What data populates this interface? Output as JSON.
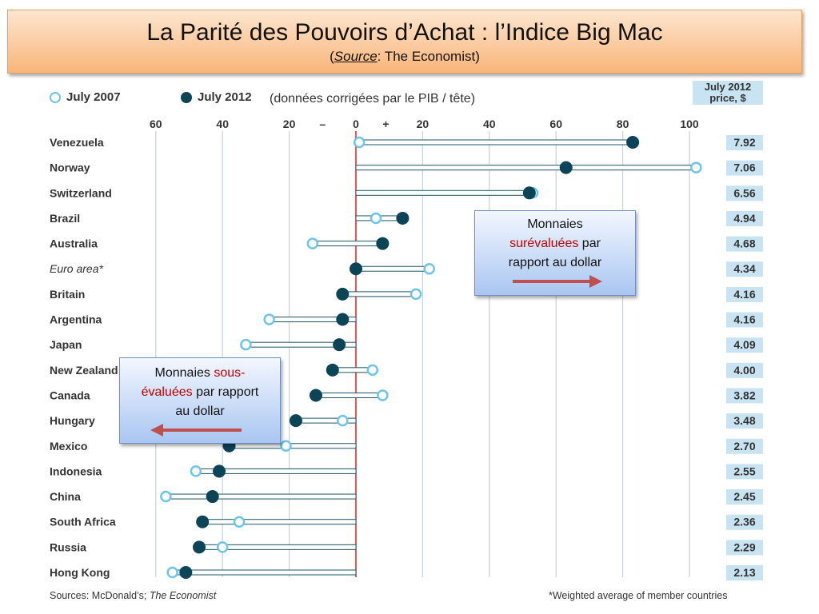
{
  "title": {
    "main": "La Parité des Pouvoirs d’Achat : l’Indice Big Mac",
    "source_open": "(",
    "source_label": "Source",
    "source_text": ": The Economist)"
  },
  "legend": {
    "open_label": "July 2007",
    "filled_label": "July 2012",
    "note": "(données corrigées par le PIB / tête)"
  },
  "price_header": {
    "line1": "July 2012",
    "line2": "price, $"
  },
  "callouts": {
    "over": {
      "line1": "Monnaies",
      "red": "surévaluées",
      "after_red": " par",
      "line3": "rapport au dollar"
    },
    "under": {
      "before_red": "Monnaies ",
      "red1": "sous-",
      "red2": "évaluées",
      "after_red": " par rapport",
      "line3": "au dollar"
    }
  },
  "footer": {
    "sources_prefix": "Sources: McDonald’s; ",
    "sources_italic": "The Economist",
    "note": "*Weighted average of member countries"
  },
  "colors": {
    "open_marker": "#6ec5ea",
    "filled_marker": "#0c4457",
    "zero_line": "#e02020",
    "price_box": "#c8e3f1",
    "arrow": "#c0504d"
  },
  "chart_data": {
    "type": "scatter",
    "xlim": [
      -60,
      100
    ],
    "x_ticks": [
      {
        "value": -60,
        "label": "60"
      },
      {
        "value": -40,
        "label": "40"
      },
      {
        "value": -20,
        "label": "20"
      },
      {
        "value": -10,
        "label": "–"
      },
      {
        "value": 0,
        "label": "0"
      },
      {
        "value": 9,
        "label": "+"
      },
      {
        "value": 20,
        "label": "20"
      },
      {
        "value": 40,
        "label": "40"
      },
      {
        "value": 60,
        "label": "60"
      },
      {
        "value": 80,
        "label": "80"
      },
      {
        "value": 100,
        "label": "100"
      }
    ],
    "grid": true,
    "legend": "top-left",
    "series": [
      {
        "name": "July 2007",
        "marker": "open"
      },
      {
        "name": "July 2012",
        "marker": "filled"
      }
    ],
    "rows": [
      {
        "country": "Venezuela",
        "italic": false,
        "v2007": 1,
        "v2012": 83,
        "price": "7.92"
      },
      {
        "country": "Norway",
        "italic": false,
        "v2007": 102,
        "v2012": 63,
        "price": "7.06"
      },
      {
        "country": "Switzerland",
        "italic": false,
        "v2007": 53,
        "v2012": 52,
        "price": "6.56"
      },
      {
        "country": "Brazil",
        "italic": false,
        "v2007": 6,
        "v2012": 14,
        "price": "4.94"
      },
      {
        "country": "Australia",
        "italic": false,
        "v2007": -13,
        "v2012": 8,
        "price": "4.68"
      },
      {
        "country": "Euro area*",
        "italic": true,
        "v2007": 22,
        "v2012": 0,
        "price": "4.34"
      },
      {
        "country": "Britain",
        "italic": false,
        "v2007": 18,
        "v2012": -4,
        "price": "4.16"
      },
      {
        "country": "Argentina",
        "italic": false,
        "v2007": -26,
        "v2012": -4,
        "price": "4.16"
      },
      {
        "country": "Japan",
        "italic": false,
        "v2007": -33,
        "v2012": -5,
        "price": "4.09"
      },
      {
        "country": "New Zealand",
        "italic": false,
        "v2007": 5,
        "v2012": -7,
        "price": "4.00"
      },
      {
        "country": "Canada",
        "italic": false,
        "v2007": 8,
        "v2012": -12,
        "price": "3.82"
      },
      {
        "country": "Hungary",
        "italic": false,
        "v2007": -4,
        "v2012": -18,
        "price": "3.48"
      },
      {
        "country": "Mexico",
        "italic": false,
        "v2007": -21,
        "v2012": -38,
        "price": "2.70"
      },
      {
        "country": "Indonesia",
        "italic": false,
        "v2007": -48,
        "v2012": -41,
        "price": "2.55"
      },
      {
        "country": "China",
        "italic": false,
        "v2007": -57,
        "v2012": -43,
        "price": "2.45"
      },
      {
        "country": "South Africa",
        "italic": false,
        "v2007": -35,
        "v2012": -46,
        "price": "2.36"
      },
      {
        "country": "Russia",
        "italic": false,
        "v2007": -40,
        "v2012": -47,
        "price": "2.29"
      },
      {
        "country": "Hong Kong",
        "italic": false,
        "v2007": -55,
        "v2012": -51,
        "price": "2.13"
      }
    ]
  }
}
